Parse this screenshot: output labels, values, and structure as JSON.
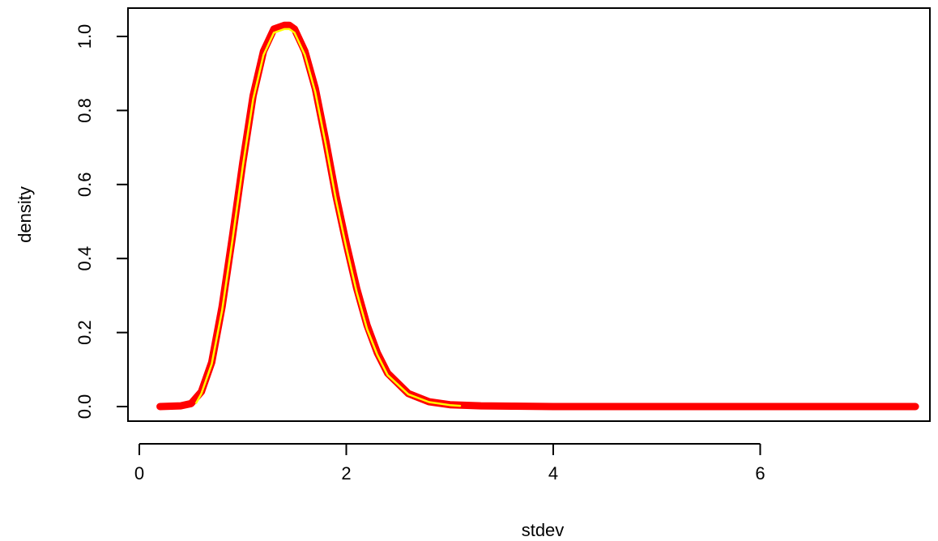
{
  "chart_data": {
    "type": "line",
    "title": "",
    "xlabel": "stdev",
    "ylabel": "density",
    "xlim": [
      0,
      7.5
    ],
    "ylim": [
      0,
      1.0
    ],
    "x_ticks": [
      0,
      2,
      4,
      6
    ],
    "x_tick_labels": [
      "0",
      "2",
      "4",
      "6"
    ],
    "y_ticks": [
      0.0,
      0.2,
      0.4,
      0.6,
      0.8,
      1.0
    ],
    "y_tick_labels": [
      "0.0",
      "0.2",
      "0.4",
      "0.6",
      "0.8",
      "1.0"
    ],
    "grid": false,
    "legend": "none",
    "series": [
      {
        "color": "#ff0000",
        "x": [
          0.2,
          0.4,
          0.5,
          0.6,
          0.7,
          0.8,
          0.9,
          1.0,
          1.1,
          1.2,
          1.3,
          1.4,
          1.45,
          1.5,
          1.6,
          1.7,
          1.8,
          1.9,
          2.0,
          2.1,
          2.2,
          2.3,
          2.4,
          2.6,
          2.8,
          3.0,
          3.3,
          3.6,
          4.0,
          5.0,
          6.0,
          7.0,
          7.5
        ],
        "y": [
          0.0,
          0.002,
          0.008,
          0.04,
          0.12,
          0.27,
          0.46,
          0.66,
          0.84,
          0.96,
          1.02,
          1.03,
          1.03,
          1.02,
          0.96,
          0.86,
          0.72,
          0.57,
          0.44,
          0.32,
          0.22,
          0.145,
          0.09,
          0.035,
          0.013,
          0.005,
          0.002,
          0.001,
          0.0,
          0.0,
          0.0,
          0.0,
          0.0
        ]
      },
      {
        "color": "#ffff00",
        "x": [
          0.55,
          0.6,
          0.7,
          0.8,
          0.9,
          1.0,
          1.1,
          1.2,
          1.3,
          1.4,
          1.45,
          1.5,
          1.6,
          1.7,
          1.8,
          1.9,
          2.0,
          2.1,
          2.2,
          2.3,
          2.4,
          2.6,
          2.8,
          3.0,
          3.1
        ],
        "y": [
          0.01,
          0.035,
          0.115,
          0.26,
          0.45,
          0.65,
          0.83,
          0.95,
          1.01,
          1.02,
          1.02,
          1.01,
          0.95,
          0.85,
          0.71,
          0.56,
          0.43,
          0.31,
          0.21,
          0.14,
          0.085,
          0.033,
          0.012,
          0.004,
          0.002
        ]
      }
    ]
  }
}
